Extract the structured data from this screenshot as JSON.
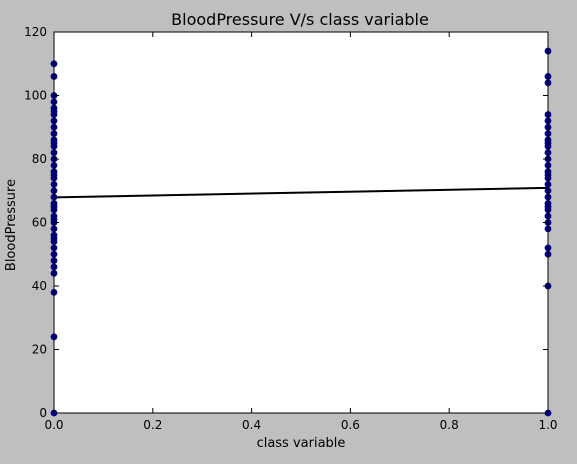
{
  "chart_data": {
    "type": "scatter",
    "title": "BloodPressure V/s class variable",
    "xlabel": "class variable",
    "ylabel": "BloodPressure",
    "xlim": [
      0.0,
      1.0
    ],
    "ylim": [
      0,
      120
    ],
    "xticks": [
      "0.0",
      "0.2",
      "0.4",
      "0.6",
      "0.8",
      "1.0"
    ],
    "yticks": [
      "0",
      "20",
      "40",
      "60",
      "80",
      "100",
      "120"
    ],
    "grid": false,
    "series": [
      {
        "type": "scatter",
        "color": "#00008b",
        "points": [
          [
            0,
            0
          ],
          [
            0,
            24
          ],
          [
            0,
            38
          ],
          [
            0,
            44
          ],
          [
            0,
            46
          ],
          [
            0,
            48
          ],
          [
            0,
            50
          ],
          [
            0,
            52
          ],
          [
            0,
            54
          ],
          [
            0,
            55
          ],
          [
            0,
            56
          ],
          [
            0,
            58
          ],
          [
            0,
            60
          ],
          [
            0,
            61
          ],
          [
            0,
            62
          ],
          [
            0,
            64
          ],
          [
            0,
            65
          ],
          [
            0,
            66
          ],
          [
            0,
            68
          ],
          [
            0,
            70
          ],
          [
            0,
            72
          ],
          [
            0,
            74
          ],
          [
            0,
            75
          ],
          [
            0,
            76
          ],
          [
            0,
            78
          ],
          [
            0,
            80
          ],
          [
            0,
            82
          ],
          [
            0,
            84
          ],
          [
            0,
            85
          ],
          [
            0,
            86
          ],
          [
            0,
            88
          ],
          [
            0,
            90
          ],
          [
            0,
            92
          ],
          [
            0,
            94
          ],
          [
            0,
            95
          ],
          [
            0,
            96
          ],
          [
            0,
            98
          ],
          [
            0,
            100
          ],
          [
            0,
            106
          ],
          [
            0,
            110
          ],
          [
            1,
            0
          ],
          [
            1,
            40
          ],
          [
            1,
            50
          ],
          [
            1,
            52
          ],
          [
            1,
            58
          ],
          [
            1,
            60
          ],
          [
            1,
            62
          ],
          [
            1,
            64
          ],
          [
            1,
            65
          ],
          [
            1,
            66
          ],
          [
            1,
            68
          ],
          [
            1,
            70
          ],
          [
            1,
            72
          ],
          [
            1,
            74
          ],
          [
            1,
            75
          ],
          [
            1,
            76
          ],
          [
            1,
            78
          ],
          [
            1,
            80
          ],
          [
            1,
            82
          ],
          [
            1,
            84
          ],
          [
            1,
            85
          ],
          [
            1,
            86
          ],
          [
            1,
            88
          ],
          [
            1,
            90
          ],
          [
            1,
            92
          ],
          [
            1,
            94
          ],
          [
            1,
            104
          ],
          [
            1,
            106
          ],
          [
            1,
            114
          ]
        ]
      },
      {
        "type": "line",
        "color": "#000000",
        "x": [
          0.0,
          1.0
        ],
        "y": [
          67.9,
          70.9
        ]
      }
    ]
  }
}
